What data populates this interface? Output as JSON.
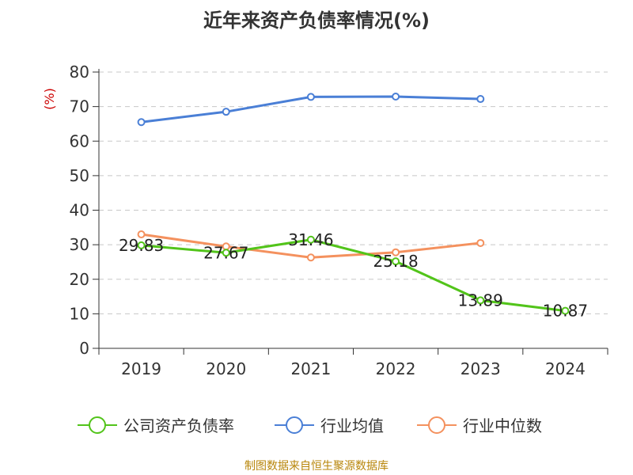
{
  "chart_data": {
    "type": "line",
    "title": "近年来资产负债率情况(%)",
    "ylabel": "(%)",
    "xlabel": "",
    "categories": [
      "2019",
      "2020",
      "2021",
      "2022",
      "2023",
      "2024"
    ],
    "ylim": [
      0,
      80
    ],
    "yticks": [
      0,
      10,
      20,
      30,
      40,
      50,
      60,
      70,
      80
    ],
    "grid": true,
    "legend_position": "bottom",
    "series": [
      {
        "name": "公司资产负债率",
        "color": "#52c41a",
        "values": [
          29.83,
          27.67,
          31.46,
          25.18,
          13.89,
          10.87
        ],
        "labels": [
          "29.83",
          "27.67",
          "31.46",
          "25.18",
          "13.89",
          "10.87"
        ]
      },
      {
        "name": "行业均值",
        "color": "#4a7fd6",
        "values": [
          65.5,
          68.5,
          72.8,
          72.9,
          72.2,
          null
        ]
      },
      {
        "name": "行业中位数",
        "color": "#f4915e",
        "values": [
          33.0,
          29.5,
          26.3,
          27.8,
          30.5,
          null
        ]
      }
    ]
  },
  "footer": "制图数据来自恒生聚源数据库"
}
